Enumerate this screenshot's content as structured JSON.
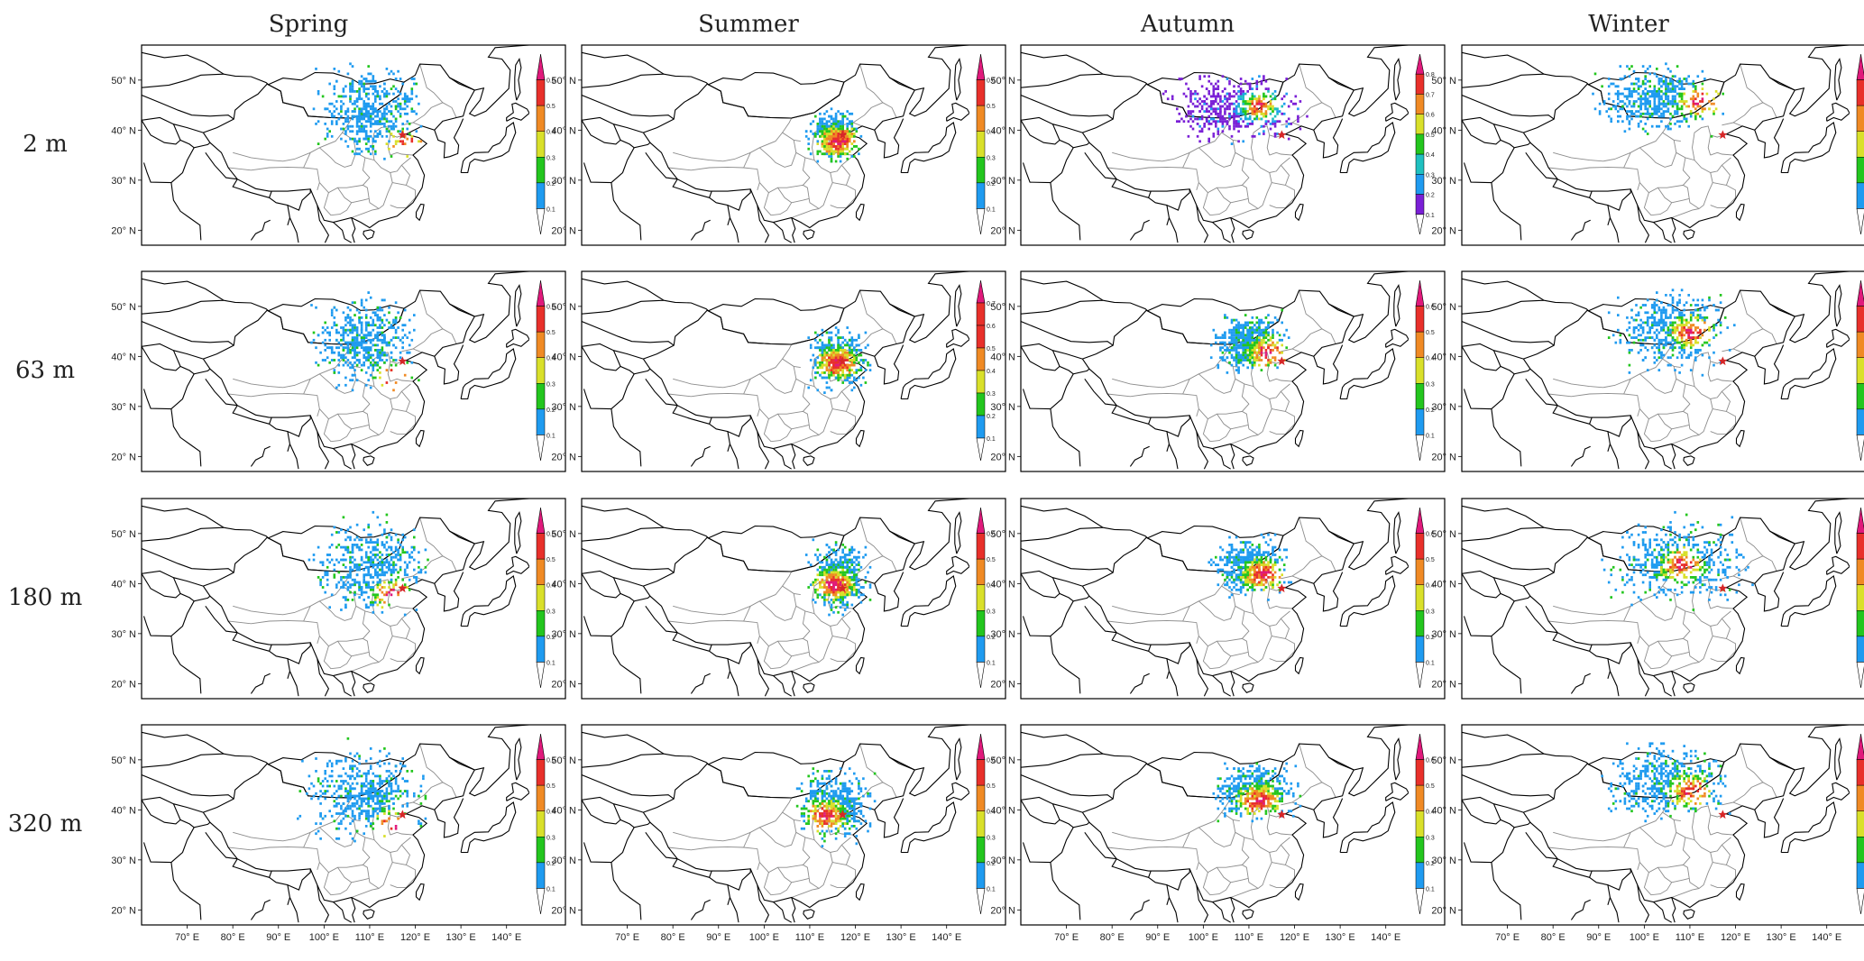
{
  "seasons": [
    "Spring",
    "Summer",
    "Autumn",
    "Winter"
  ],
  "heights": [
    "2 m",
    "63 m",
    "180 m",
    "320 m"
  ],
  "lat_labels": [
    "50° N",
    "40° N",
    "30° N",
    "20° N"
  ],
  "lon_labels": [
    "70° E",
    "80° E",
    "90° E",
    "100° E",
    "110° E",
    "120° E",
    "130° E",
    "140° E"
  ],
  "lat_values": [
    50,
    40,
    30,
    20
  ],
  "lon_values": [
    70,
    80,
    90,
    100,
    110,
    120,
    130,
    140
  ],
  "map_extent": {
    "lon": [
      60,
      145
    ],
    "lat": [
      17,
      57
    ]
  },
  "site_marker": {
    "lon": 117.2,
    "lat": 39.1,
    "symbol": "star",
    "color": "#d62728"
  },
  "colors": {
    "map_outline": "#000000",
    "province_outline": "#8c8c8c",
    "cb_palette_6": [
      "#1f9bf0",
      "#23c61e",
      "#d9e02a",
      "#f08a24",
      "#e8302a",
      "#e0197b"
    ],
    "cb_palette_8": [
      "#7a1fd6",
      "#1f9bf0",
      "#1fc0c0",
      "#23c61e",
      "#d9e02a",
      "#f08a24",
      "#e8302a",
      "#e0197b"
    ]
  },
  "colorbars": {
    "six": [
      "0.1",
      "0.2",
      "0.3",
      "0.4",
      "0.5",
      "0.6"
    ],
    "seven": [
      "0.1",
      "0.2",
      "0.3",
      "0.4",
      "0.5",
      "0.6",
      "0.7"
    ],
    "eight": [
      "0.1",
      "0.2",
      "0.3",
      "0.4",
      "0.5",
      "0.6",
      "0.7",
      "0.8"
    ]
  },
  "panels": [
    {
      "season": "Spring",
      "height": "2 m",
      "colorbar": "six",
      "cluster": {
        "lon": [
          95,
          125
        ],
        "lat": [
          32,
          56
        ],
        "center": [
          112,
          42
        ],
        "core": [
          118,
          37
        ],
        "palette": "cb_palette_6"
      }
    },
    {
      "season": "Summer",
      "height": "2 m",
      "colorbar": "six",
      "cluster": {
        "lon": [
          108,
          122
        ],
        "lat": [
          33,
          45
        ],
        "center": [
          115,
          38
        ],
        "core": [
          116,
          38
        ],
        "palette": "cb_palette_6"
      }
    },
    {
      "season": "Autumn",
      "height": "2 m",
      "colorbar": "eight",
      "cluster": {
        "lon": [
          88,
          125
        ],
        "lat": [
          36,
          53
        ],
        "center": [
          108,
          46
        ],
        "core": [
          112,
          45
        ],
        "palette": "cb_palette_8"
      }
    },
    {
      "season": "Winter",
      "height": "2 m",
      "colorbar": "six",
      "cluster": {
        "lon": [
          85,
          120
        ],
        "lat": [
          38,
          55
        ],
        "center": [
          105,
          47
        ],
        "core": [
          112,
          46
        ],
        "palette": "cb_palette_6"
      }
    },
    {
      "season": "Spring",
      "height": "63 m",
      "colorbar": "six",
      "cluster": {
        "lon": [
          95,
          122
        ],
        "lat": [
          32,
          54
        ],
        "center": [
          110,
          42
        ],
        "core": [
          115,
          36
        ],
        "palette": "cb_palette_6"
      }
    },
    {
      "season": "Summer",
      "height": "63 m",
      "colorbar": "seven",
      "cluster": {
        "lon": [
          108,
          124
        ],
        "lat": [
          32,
          47
        ],
        "center": [
          116,
          40
        ],
        "core": [
          116,
          39
        ],
        "palette": "cb_palette_6"
      }
    },
    {
      "season": "Autumn",
      "height": "63 m",
      "colorbar": "six",
      "cluster": {
        "lon": [
          100,
          120
        ],
        "lat": [
          36,
          50
        ],
        "center": [
          110,
          43
        ],
        "core": [
          114,
          41
        ],
        "palette": "cb_palette_6"
      }
    },
    {
      "season": "Winter",
      "height": "63 m",
      "colorbar": "six",
      "cluster": {
        "lon": [
          90,
          122
        ],
        "lat": [
          36,
          55
        ],
        "center": [
          105,
          47
        ],
        "core": [
          110,
          45
        ],
        "palette": "cb_palette_6"
      }
    },
    {
      "season": "Spring",
      "height": "180 m",
      "colorbar": "six",
      "cluster": {
        "lon": [
          95,
          125
        ],
        "lat": [
          32,
          55
        ],
        "center": [
          110,
          43
        ],
        "core": [
          115,
          38
        ],
        "palette": "cb_palette_6"
      }
    },
    {
      "season": "Summer",
      "height": "180 m",
      "colorbar": "six",
      "cluster": {
        "lon": [
          108,
          124
        ],
        "lat": [
          33,
          50
        ],
        "center": [
          115,
          41
        ],
        "core": [
          115,
          40
        ],
        "palette": "cb_palette_6"
      }
    },
    {
      "season": "Autumn",
      "height": "180 m",
      "colorbar": "six",
      "cluster": {
        "lon": [
          100,
          120
        ],
        "lat": [
          36,
          51
        ],
        "center": [
          110,
          45
        ],
        "core": [
          113,
          42
        ],
        "palette": "cb_palette_6"
      }
    },
    {
      "season": "Winter",
      "height": "180 m",
      "colorbar": "six",
      "cluster": {
        "lon": [
          88,
          125
        ],
        "lat": [
          34,
          55
        ],
        "center": [
          105,
          47
        ],
        "core": [
          108,
          44
        ],
        "palette": "cb_palette_6"
      }
    },
    {
      "season": "Spring",
      "height": "320 m",
      "colorbar": "six",
      "cluster": {
        "lon": [
          92,
          125
        ],
        "lat": [
          32,
          55
        ],
        "center": [
          108,
          43
        ],
        "core": [
          115,
          37
        ],
        "palette": "cb_palette_6"
      }
    },
    {
      "season": "Summer",
      "height": "320 m",
      "colorbar": "six",
      "cluster": {
        "lon": [
          105,
          125
        ],
        "lat": [
          32,
          50
        ],
        "center": [
          114,
          41
        ],
        "core": [
          113,
          39
        ],
        "palette": "cb_palette_6"
      }
    },
    {
      "season": "Autumn",
      "height": "320 m",
      "colorbar": "six",
      "cluster": {
        "lon": [
          100,
          122
        ],
        "lat": [
          37,
          51
        ],
        "center": [
          110,
          44
        ],
        "core": [
          112,
          42
        ],
        "palette": "cb_palette_6"
      }
    },
    {
      "season": "Winter",
      "height": "320 m",
      "colorbar": "six",
      "cluster": {
        "lon": [
          88,
          122
        ],
        "lat": [
          36,
          55
        ],
        "center": [
          105,
          47
        ],
        "core": [
          110,
          44
        ],
        "palette": "cb_palette_6"
      }
    }
  ]
}
